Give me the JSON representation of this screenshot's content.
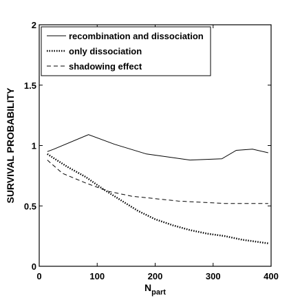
{
  "chart_data": {
    "type": "line",
    "xlabel_main": "N",
    "xlabel_sub": "part",
    "ylabel": "SURVIVAL PROBABILITY",
    "xlim": [
      0,
      400
    ],
    "ylim": [
      0,
      2
    ],
    "xticks": [
      0,
      100,
      200,
      300,
      400
    ],
    "yticks": [
      0,
      0.5,
      1,
      1.5,
      2
    ],
    "xtick_labels": [
      "0",
      "100",
      "200",
      "300",
      "400"
    ],
    "ytick_labels": [
      "0",
      "0.5",
      "1",
      "1.5",
      "2"
    ],
    "grid": false,
    "legend_position": "top-left",
    "series": [
      {
        "name": "recombination and dissociation",
        "style": "solid",
        "x": [
          14,
          25,
          85,
          130,
          185,
          260,
          315,
          340,
          368,
          395
        ],
        "y": [
          0.95,
          0.97,
          1.09,
          1.01,
          0.93,
          0.88,
          0.89,
          0.96,
          0.97,
          0.94
        ]
      },
      {
        "name": "only dissociation",
        "style": "dotted",
        "x": [
          14,
          30,
          50,
          80,
          110,
          140,
          170,
          200,
          230,
          260,
          290,
          320,
          350,
          380,
          395
        ],
        "y": [
          0.93,
          0.88,
          0.82,
          0.74,
          0.64,
          0.55,
          0.46,
          0.39,
          0.34,
          0.3,
          0.27,
          0.25,
          0.22,
          0.2,
          0.19
        ]
      },
      {
        "name": "shadowing effect",
        "style": "dashed",
        "x": [
          14,
          40,
          80,
          120,
          160,
          200,
          240,
          280,
          320,
          360,
          395
        ],
        "y": [
          0.88,
          0.77,
          0.69,
          0.62,
          0.58,
          0.56,
          0.54,
          0.53,
          0.52,
          0.52,
          0.52
        ]
      }
    ]
  }
}
